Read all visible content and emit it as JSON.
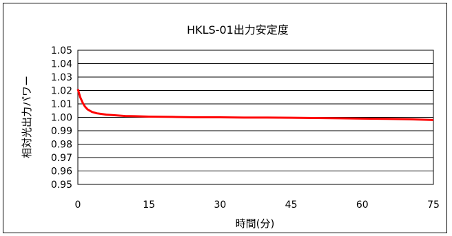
{
  "chart_data": {
    "type": "line",
    "title": "HKLS-01出力安定度",
    "xlabel": "時間(分)",
    "ylabel": "相対光出力パワー",
    "xlim": [
      0,
      75
    ],
    "ylim": [
      0.95,
      1.05
    ],
    "x_ticks": [
      0,
      15,
      30,
      45,
      60,
      75
    ],
    "x_tick_labels": [
      "0",
      "15",
      "30",
      "45",
      "60",
      "75"
    ],
    "y_ticks": [
      0.95,
      0.96,
      0.97,
      0.98,
      0.99,
      1.0,
      1.01,
      1.02,
      1.03,
      1.04,
      1.05
    ],
    "y_tick_labels": [
      "0.95",
      "0.96",
      "0.97",
      "0.98",
      "0.99",
      "1.00",
      "1.01",
      "1.02",
      "1.03",
      "1.04",
      "1.05"
    ],
    "grid": "horizontal",
    "legend": "none",
    "series": [
      {
        "color": "#ff0000",
        "x": [
          0,
          0.5,
          1,
          1.5,
          2,
          2.5,
          3,
          4,
          5,
          6,
          8,
          10,
          12,
          15,
          20,
          25,
          30,
          35,
          40,
          45,
          50,
          55,
          60,
          65,
          70,
          75
        ],
        "y": [
          1.021,
          1.015,
          1.011,
          1.008,
          1.006,
          1.005,
          1.004,
          1.003,
          1.0025,
          1.002,
          1.0015,
          1.001,
          1.0008,
          1.0005,
          1.0003,
          1.0,
          1.0,
          0.9998,
          0.9998,
          0.9997,
          0.9995,
          0.9993,
          0.999,
          0.9988,
          0.9985,
          0.998
        ]
      }
    ]
  }
}
